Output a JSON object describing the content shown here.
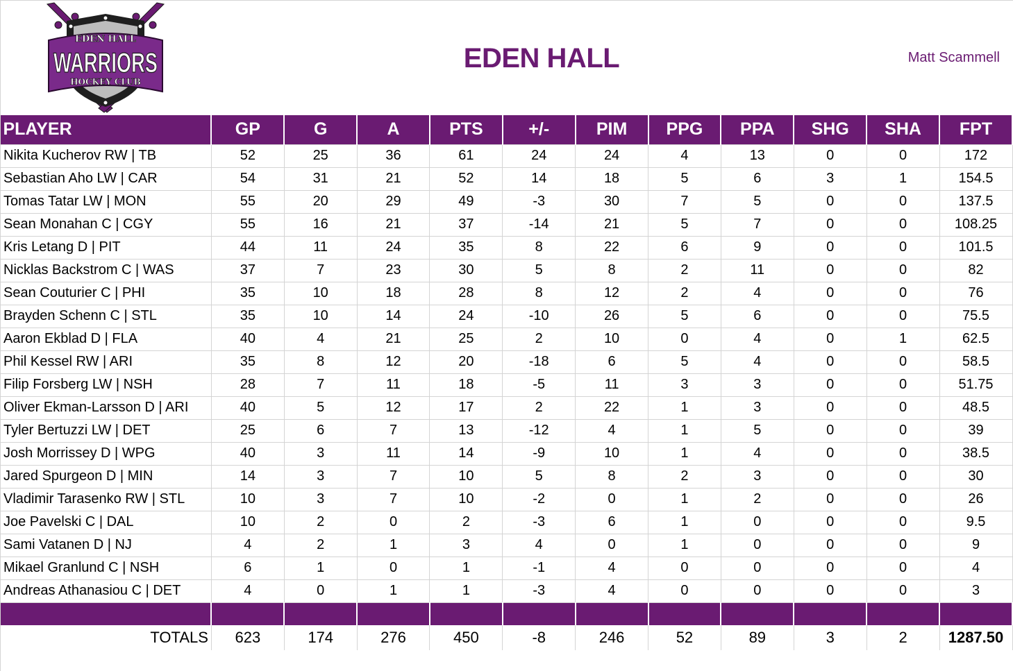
{
  "header": {
    "logo": {
      "top_text": "EDEN HALL",
      "main_text": "WARRIORS",
      "bottom_text": "HOCKEY CLUB"
    },
    "title": "EDEN HALL",
    "owner": "Matt Scammell"
  },
  "colors": {
    "accent": "#6a1b72",
    "header_text": "#ffffff",
    "grid": "#d4d4d4"
  },
  "table": {
    "columns": [
      "PLAYER",
      "GP",
      "G",
      "A",
      "PTS",
      "+/-",
      "PIM",
      "PPG",
      "PPA",
      "SHG",
      "SHA",
      "FPT"
    ],
    "rows": [
      [
        "Nikita Kucherov RW | TB",
        "52",
        "25",
        "36",
        "61",
        "24",
        "24",
        "4",
        "13",
        "0",
        "0",
        "172"
      ],
      [
        "Sebastian Aho LW | CAR",
        "54",
        "31",
        "21",
        "52",
        "14",
        "18",
        "5",
        "6",
        "3",
        "1",
        "154.5"
      ],
      [
        "Tomas Tatar LW | MON",
        "55",
        "20",
        "29",
        "49",
        "-3",
        "30",
        "7",
        "5",
        "0",
        "0",
        "137.5"
      ],
      [
        "Sean Monahan C | CGY",
        "55",
        "16",
        "21",
        "37",
        "-14",
        "21",
        "5",
        "7",
        "0",
        "0",
        "108.25"
      ],
      [
        "Kris Letang D | PIT",
        "44",
        "11",
        "24",
        "35",
        "8",
        "22",
        "6",
        "9",
        "0",
        "0",
        "101.5"
      ],
      [
        "Nicklas Backstrom C | WAS",
        "37",
        "7",
        "23",
        "30",
        "5",
        "8",
        "2",
        "11",
        "0",
        "0",
        "82"
      ],
      [
        "Sean Couturier C | PHI",
        "35",
        "10",
        "18",
        "28",
        "8",
        "12",
        "2",
        "4",
        "0",
        "0",
        "76"
      ],
      [
        "Brayden Schenn C | STL",
        "35",
        "10",
        "14",
        "24",
        "-10",
        "26",
        "5",
        "6",
        "0",
        "0",
        "75.5"
      ],
      [
        "Aaron Ekblad D | FLA",
        "40",
        "4",
        "21",
        "25",
        "2",
        "10",
        "0",
        "4",
        "0",
        "1",
        "62.5"
      ],
      [
        "Phil Kessel RW | ARI",
        "35",
        "8",
        "12",
        "20",
        "-18",
        "6",
        "5",
        "4",
        "0",
        "0",
        "58.5"
      ],
      [
        "Filip Forsberg LW | NSH",
        "28",
        "7",
        "11",
        "18",
        "-5",
        "11",
        "3",
        "3",
        "0",
        "0",
        "51.75"
      ],
      [
        "Oliver Ekman-Larsson D | ARI",
        "40",
        "5",
        "12",
        "17",
        "2",
        "22",
        "1",
        "3",
        "0",
        "0",
        "48.5"
      ],
      [
        "Tyler Bertuzzi LW | DET",
        "25",
        "6",
        "7",
        "13",
        "-12",
        "4",
        "1",
        "5",
        "0",
        "0",
        "39"
      ],
      [
        "Josh Morrissey D | WPG",
        "40",
        "3",
        "11",
        "14",
        "-9",
        "10",
        "1",
        "4",
        "0",
        "0",
        "38.5"
      ],
      [
        "Jared Spurgeon D | MIN",
        "14",
        "3",
        "7",
        "10",
        "5",
        "8",
        "2",
        "3",
        "0",
        "0",
        "30"
      ],
      [
        "Vladimir Tarasenko RW | STL",
        "10",
        "3",
        "7",
        "10",
        "-2",
        "0",
        "1",
        "2",
        "0",
        "0",
        "26"
      ],
      [
        "Joe Pavelski C | DAL",
        "10",
        "2",
        "0",
        "2",
        "-3",
        "6",
        "1",
        "0",
        "0",
        "0",
        "9.5"
      ],
      [
        "Sami Vatanen D | NJ",
        "4",
        "2",
        "1",
        "3",
        "4",
        "0",
        "1",
        "0",
        "0",
        "0",
        "9"
      ],
      [
        "Mikael Granlund C | NSH",
        "6",
        "1",
        "0",
        "1",
        "-1",
        "4",
        "0",
        "0",
        "0",
        "0",
        "4"
      ],
      [
        "Andreas Athanasiou C | DET",
        "4",
        "0",
        "1",
        "1",
        "-3",
        "4",
        "0",
        "0",
        "0",
        "0",
        "3"
      ]
    ],
    "totals": {
      "label": "TOTALS",
      "values": [
        "623",
        "174",
        "276",
        "450",
        "-8",
        "246",
        "52",
        "89",
        "3",
        "2",
        "1287.50"
      ]
    }
  }
}
